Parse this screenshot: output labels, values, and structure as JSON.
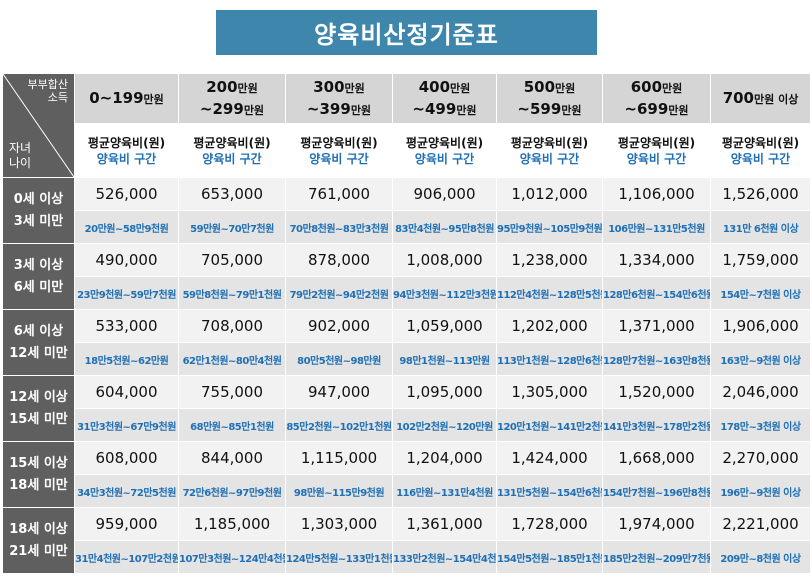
{
  "title": "양육비산정기준표",
  "corner": {
    "income_line1": "부부합산",
    "income_line2": "소득",
    "age_line1": "자녀",
    "age_line2": "나이"
  },
  "income_brackets": [
    {
      "line1": "0~199",
      "unit1": "만원",
      "line2": "",
      "unit2": ""
    },
    {
      "line1": "200",
      "unit1": "만원",
      "line2": "~299",
      "unit2": "만원"
    },
    {
      "line1": "300",
      "unit1": "만원",
      "line2": "~399",
      "unit2": "만원"
    },
    {
      "line1": "400",
      "unit1": "만원",
      "line2": "~499",
      "unit2": "만원"
    },
    {
      "line1": "500",
      "unit1": "만원",
      "line2": "~599",
      "unit2": "만원"
    },
    {
      "line1": "600",
      "unit1": "만원",
      "line2": "~699",
      "unit2": "만원"
    },
    {
      "line1": "700",
      "unit1": "만원 이상",
      "line2": "",
      "unit2": ""
    }
  ],
  "subheader": {
    "avg": "평균양육비(원)",
    "range": "양육비 구간"
  },
  "rows": [
    {
      "age1": "0세 이상",
      "age2": "3세 미만",
      "amounts": [
        "526,000",
        "653,000",
        "761,000",
        "906,000",
        "1,012,000",
        "1,106,000",
        "1,526,000"
      ],
      "ranges": [
        "20만원~58만9천원",
        "59만원~70만7천원",
        "70만8천원~83만3천원",
        "83만4천원~95만8천원",
        "95만9천원~105만9천원",
        "106만원~131만5천원",
        "131만 6천원 이상"
      ]
    },
    {
      "age1": "3세 이상",
      "age2": "6세 미만",
      "amounts": [
        "490,000",
        "705,000",
        "878,000",
        "1,008,000",
        "1,238,000",
        "1,334,000",
        "1,759,000"
      ],
      "ranges": [
        "23만9천원~59만7천원",
        "59만8천원~79만1천원",
        "79만2천원~94만2천원",
        "94만3천원~112만3천원",
        "112만4천원~128만5천원",
        "128만6천원~154만6천원",
        "154만~7천원 이상"
      ]
    },
    {
      "age1": "6세 이상",
      "age2": "12세 미만",
      "amounts": [
        "533,000",
        "708,000",
        "902,000",
        "1,059,000",
        "1,202,000",
        "1,371,000",
        "1,906,000"
      ],
      "ranges": [
        "18만5천원~62만원",
        "62만1천원~80만4천원",
        "80만5천원~98만원",
        "98만1천원~113만원",
        "113만1천원~128만6천원",
        "128만7천원~163만8천원",
        "163만~9천원 이상"
      ]
    },
    {
      "age1": "12세 이상",
      "age2": "15세 미만",
      "amounts": [
        "604,000",
        "755,000",
        "947,000",
        "1,095,000",
        "1,305,000",
        "1,520,000",
        "2,046,000"
      ],
      "ranges": [
        "31만3천원~67만9천원",
        "68만원~85만1천원",
        "85만2천원~102만1천원",
        "102만2천원~120만원",
        "120만1천원~141만2천원",
        "141만3천원~178만2천원",
        "178만~3천원 이상"
      ]
    },
    {
      "age1": "15세 이상",
      "age2": "18세 미만",
      "amounts": [
        "608,000",
        "844,000",
        "1,115,000",
        "1,204,000",
        "1,424,000",
        "1,668,000",
        "2,270,000"
      ],
      "ranges": [
        "34만3천원~72만5천원",
        "72만6천원~97만9천원",
        "98만원~115만9천원",
        "116만원~131만4천원",
        "131만5천원~154만6천원",
        "154만7천원~196만8천원",
        "196만~9천원 이상"
      ]
    },
    {
      "age1": "18세 이상",
      "age2": "21세 미만",
      "amounts": [
        "959,000",
        "1,185,000",
        "1,303,000",
        "1,361,000",
        "1,728,000",
        "1,974,000",
        "2,221,000"
      ],
      "ranges": [
        "31만4천원~107만2천원",
        "107만3천원~124만4천원",
        "124만5천원~133만1천원",
        "133만2천원~154만4천원",
        "154만5천원~185만1천원",
        "185만2천원~209만7천원",
        "209만~8천원 이상"
      ]
    }
  ]
}
